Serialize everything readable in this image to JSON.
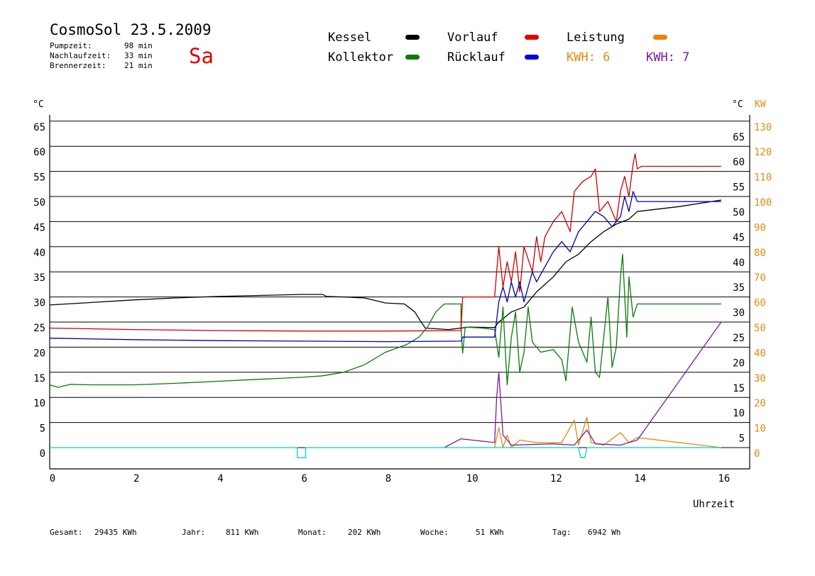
{
  "header": {
    "title": "CosmoSol 23.5.2009",
    "day": "Sa",
    "stats": [
      {
        "label": "Pumpzeit:",
        "value": "98 min"
      },
      {
        "label": "Nachlaufzeit:",
        "value": "33 min"
      },
      {
        "label": "Brennerzeit:",
        "value": "21 min"
      }
    ]
  },
  "legend": {
    "kessel": "Kessel",
    "kollektor": "Kollektor",
    "vorlauf": "Vorlauf",
    "ruecklauf": "Rücklauf",
    "leistung": "Leistung",
    "kwh_orange": "KWH: 6",
    "kwh_purple": "KWH: 7"
  },
  "footer": [
    {
      "label": "Gesamt:",
      "value": "29435 KWh"
    },
    {
      "label": "Jahr:",
      "value": "811 KWh"
    },
    {
      "label": "Monat:",
      "value": "202 KWh"
    },
    {
      "label": "Woche:",
      "value": "51 KWh"
    },
    {
      "label": "Tag:",
      "value": "6942 Wh"
    }
  ],
  "chart_data": {
    "type": "line",
    "xlabel": "Uhrzeit",
    "ylabel_left": "°C",
    "ylabel_right_temp": "°C",
    "ylabel_right_power": "KW",
    "xlim": [
      0,
      16.7
    ],
    "ylim": [
      -4.2,
      68
    ],
    "x_ticks": [
      0,
      2,
      4,
      6,
      8,
      10,
      12,
      14,
      16
    ],
    "y_ticks_left": [
      0,
      5,
      10,
      15,
      20,
      25,
      30,
      35,
      40,
      45,
      50,
      55,
      60,
      65
    ],
    "y_ticks_right_temp": [
      5,
      10,
      15,
      20,
      25,
      30,
      35,
      40,
      45,
      50,
      55,
      60,
      65
    ],
    "y_ticks_right_power": [
      0,
      10,
      20,
      30,
      40,
      50,
      60,
      70,
      80,
      90,
      100,
      110,
      120,
      130
    ],
    "grid": true,
    "colors": {
      "kessel": "#000000",
      "kollektor": "#0a7a0a",
      "vorlauf": "#cc0000",
      "ruecklauf": "#0000aa",
      "leistung": "#e08a10",
      "kwh": "#7a1a9a",
      "pumpe": "#00d0d0",
      "leistung_label": "#e08a10",
      "kwh_label": "#7a1a9a",
      "power_axis": "#e08a10",
      "day": "#e00000"
    },
    "series": [
      {
        "name": "Kessel",
        "key": "kessel",
        "points": [
          [
            0,
            28.4
          ],
          [
            1,
            28.9
          ],
          [
            2,
            29.4
          ],
          [
            3,
            29.8
          ],
          [
            4,
            30.1
          ],
          [
            5,
            30.3
          ],
          [
            6,
            30.5
          ],
          [
            6.5,
            30.5
          ],
          [
            6.6,
            30.1
          ],
          [
            7,
            30.0
          ],
          [
            7.5,
            29.8
          ],
          [
            8,
            28.8
          ],
          [
            8.45,
            28.6
          ],
          [
            8.7,
            27.0
          ],
          [
            8.85,
            25.0
          ],
          [
            8.95,
            23.8
          ],
          [
            9.5,
            23.5
          ],
          [
            10,
            24.0
          ],
          [
            10.6,
            23.9
          ],
          [
            10.7,
            25.0
          ],
          [
            11,
            27.0
          ],
          [
            11.3,
            28.0
          ],
          [
            11.6,
            31.0
          ],
          [
            12,
            34.0
          ],
          [
            12.3,
            37.0
          ],
          [
            12.6,
            38.5
          ],
          [
            12.9,
            41.0
          ],
          [
            13.2,
            43.0
          ],
          [
            13.5,
            44.5
          ],
          [
            13.8,
            45.5
          ],
          [
            14,
            47.0
          ],
          [
            15,
            48.0
          ],
          [
            16,
            49.3
          ]
        ]
      },
      {
        "name": "Kollektor",
        "key": "kollektor",
        "points": [
          [
            0,
            12.5
          ],
          [
            0.2,
            12.0
          ],
          [
            0.5,
            12.6
          ],
          [
            1,
            12.5
          ],
          [
            2,
            12.5
          ],
          [
            3,
            12.8
          ],
          [
            4,
            13.2
          ],
          [
            5,
            13.6
          ],
          [
            6,
            14.0
          ],
          [
            6.5,
            14.3
          ],
          [
            7,
            15.0
          ],
          [
            7.5,
            16.5
          ],
          [
            8,
            19.0
          ],
          [
            8.5,
            20.5
          ],
          [
            8.8,
            22.0
          ],
          [
            9,
            24.0
          ],
          [
            9.2,
            27.0
          ],
          [
            9.4,
            28.6
          ],
          [
            9.8,
            28.6
          ],
          [
            9.8,
            24.0
          ],
          [
            9.84,
            18.8
          ],
          [
            9.9,
            24.0
          ],
          [
            10.3,
            23.8
          ],
          [
            10.6,
            23.5
          ],
          [
            10.7,
            18.0
          ],
          [
            10.8,
            28.0
          ],
          [
            10.9,
            12.5
          ],
          [
            11,
            22.0
          ],
          [
            11.1,
            27.0
          ],
          [
            11.2,
            15.0
          ],
          [
            11.3,
            19.0
          ],
          [
            11.4,
            28.0
          ],
          [
            11.5,
            21.0
          ],
          [
            11.7,
            19.0
          ],
          [
            12,
            19.5
          ],
          [
            12.2,
            17.5
          ],
          [
            12.3,
            13.3
          ],
          [
            12.45,
            28.0
          ],
          [
            12.6,
            21.0
          ],
          [
            12.8,
            17.0
          ],
          [
            12.9,
            26.0
          ],
          [
            13,
            15.0
          ],
          [
            13.1,
            14.0
          ],
          [
            13.2,
            22.0
          ],
          [
            13.3,
            30.0
          ],
          [
            13.4,
            16.0
          ],
          [
            13.5,
            20.0
          ],
          [
            13.6,
            34.0
          ],
          [
            13.65,
            38.5
          ],
          [
            13.75,
            22.0
          ],
          [
            13.8,
            34.0
          ],
          [
            13.9,
            26.0
          ],
          [
            14,
            28.6
          ],
          [
            16,
            28.6
          ]
        ]
      },
      {
        "name": "Vorlauf",
        "key": "vorlauf",
        "points": [
          [
            0,
            23.8
          ],
          [
            2,
            23.5
          ],
          [
            4,
            23.3
          ],
          [
            6,
            23.2
          ],
          [
            8,
            23.2
          ],
          [
            9.8,
            23.3
          ],
          [
            9.84,
            30.0
          ],
          [
            10.6,
            30.0
          ],
          [
            10.65,
            35.0
          ],
          [
            10.7,
            40.0
          ],
          [
            10.8,
            32.0
          ],
          [
            10.9,
            37.0
          ],
          [
            11,
            33.0
          ],
          [
            11.1,
            39.0
          ],
          [
            11.2,
            31.0
          ],
          [
            11.3,
            40.0
          ],
          [
            11.5,
            35.0
          ],
          [
            11.6,
            42.0
          ],
          [
            11.7,
            37.0
          ],
          [
            11.8,
            42.0
          ],
          [
            12,
            45.0
          ],
          [
            12.2,
            47.0
          ],
          [
            12.4,
            43.0
          ],
          [
            12.5,
            51.0
          ],
          [
            12.7,
            53.0
          ],
          [
            12.9,
            54.0
          ],
          [
            13,
            55.5
          ],
          [
            13.1,
            47.0
          ],
          [
            13.3,
            49.0
          ],
          [
            13.5,
            45.0
          ],
          [
            13.6,
            51.0
          ],
          [
            13.7,
            54.0
          ],
          [
            13.8,
            50.0
          ],
          [
            13.9,
            56.5
          ],
          [
            13.95,
            58.5
          ],
          [
            14,
            55.5
          ],
          [
            14.1,
            56.0
          ],
          [
            16,
            56.0
          ]
        ]
      },
      {
        "name": "Rücklauf",
        "key": "ruecklauf",
        "points": [
          [
            0,
            21.8
          ],
          [
            2,
            21.5
          ],
          [
            4,
            21.3
          ],
          [
            6,
            21.2
          ],
          [
            8,
            21.1
          ],
          [
            9.8,
            21.2
          ],
          [
            9.84,
            22.0
          ],
          [
            10.6,
            22.0
          ],
          [
            10.7,
            29.0
          ],
          [
            10.8,
            32.0
          ],
          [
            10.9,
            29.0
          ],
          [
            11,
            33.0
          ],
          [
            11.1,
            30.0
          ],
          [
            11.2,
            33.0
          ],
          [
            11.3,
            29.0
          ],
          [
            11.5,
            35.0
          ],
          [
            11.6,
            33.0
          ],
          [
            11.8,
            36.0
          ],
          [
            12,
            39.0
          ],
          [
            12.2,
            41.0
          ],
          [
            12.4,
            39.0
          ],
          [
            12.6,
            43.0
          ],
          [
            12.8,
            45.0
          ],
          [
            13,
            47.0
          ],
          [
            13.2,
            46.0
          ],
          [
            13.4,
            44.0
          ],
          [
            13.6,
            46.0
          ],
          [
            13.7,
            50.0
          ],
          [
            13.8,
            47.0
          ],
          [
            13.9,
            51.0
          ],
          [
            14,
            49.0
          ],
          [
            16,
            49.0
          ]
        ]
      },
      {
        "name": "Leistung",
        "key": "leistung",
        "axis": "power",
        "points": [
          [
            10.6,
            0
          ],
          [
            10.7,
            8
          ],
          [
            10.8,
            0
          ],
          [
            10.9,
            5
          ],
          [
            11,
            0
          ],
          [
            11.2,
            3
          ],
          [
            11.6,
            2
          ],
          [
            12.2,
            2
          ],
          [
            12.5,
            11
          ],
          [
            12.6,
            1
          ],
          [
            12.8,
            12
          ],
          [
            12.9,
            2
          ],
          [
            13.2,
            1
          ],
          [
            13.6,
            6
          ],
          [
            13.8,
            2
          ],
          [
            14,
            4
          ],
          [
            16,
            0
          ]
        ]
      },
      {
        "name": "KWH",
        "key": "kwh",
        "axis": "power",
        "points": [
          [
            9.4,
            0
          ],
          [
            9.8,
            3.5
          ],
          [
            10.6,
            2
          ],
          [
            10.65,
            20
          ],
          [
            10.7,
            30
          ],
          [
            10.8,
            5
          ],
          [
            11,
            1
          ],
          [
            12,
            1.5
          ],
          [
            12.5,
            1
          ],
          [
            12.8,
            7
          ],
          [
            13,
            1.5
          ],
          [
            13.6,
            1
          ],
          [
            14,
            3
          ],
          [
            16,
            50
          ]
        ]
      },
      {
        "name": "Pumpe",
        "key": "pumpe",
        "points": [
          [
            0,
            0
          ],
          [
            5.9,
            0
          ],
          [
            5.9,
            -2
          ],
          [
            6.1,
            -2
          ],
          [
            6.1,
            0
          ],
          [
            12.6,
            0
          ],
          [
            12.65,
            -2
          ],
          [
            12.75,
            -2
          ],
          [
            12.8,
            0
          ],
          [
            16,
            0
          ]
        ]
      }
    ]
  }
}
